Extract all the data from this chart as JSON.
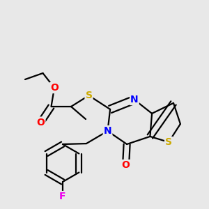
{
  "background_color": "#e8e8e8",
  "bond_color": "#000000",
  "atom_colors": {
    "O": "#ff0000",
    "N": "#0000ff",
    "S": "#ccaa00",
    "F": "#ee00ee",
    "C": "#000000"
  },
  "bond_width": 1.6,
  "dbo": 0.022,
  "font_size": 10
}
